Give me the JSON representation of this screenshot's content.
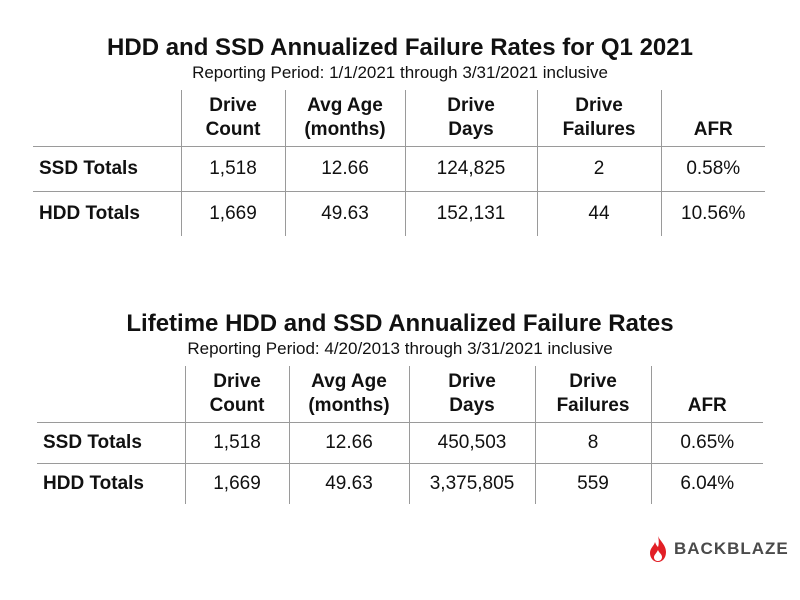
{
  "chart_data": [
    {
      "type": "table",
      "title": "HDD and SSD Annualized Failure Rates for Q1 2021",
      "subtitle": "Reporting Period: 1/1/2021 through 3/31/2021 inclusive",
      "columns": [
        [
          "Drive",
          "Count"
        ],
        [
          "Avg Age",
          "(months)"
        ],
        [
          "Drive",
          "Days"
        ],
        [
          "Drive",
          "Failures"
        ],
        [
          "",
          "AFR"
        ]
      ],
      "rows": [
        {
          "label": "SSD Totals",
          "values": [
            "1,518",
            "12.66",
            "124,825",
            "2",
            "0.58%"
          ]
        },
        {
          "label": "HDD Totals",
          "values": [
            "1,669",
            "49.63",
            "152,131",
            "44",
            "10.56%"
          ]
        }
      ]
    },
    {
      "type": "table",
      "title": "Lifetime HDD and SSD Annualized Failure Rates",
      "subtitle": "Reporting Period: 4/20/2013 through 3/31/2021 inclusive",
      "columns": [
        [
          "Drive",
          "Count"
        ],
        [
          "Avg Age",
          "(months)"
        ],
        [
          "Drive",
          "Days"
        ],
        [
          "Drive",
          "Failures"
        ],
        [
          "",
          "AFR"
        ]
      ],
      "rows": [
        {
          "label": "SSD Totals",
          "values": [
            "1,518",
            "12.66",
            "450,503",
            "8",
            "0.65%"
          ]
        },
        {
          "label": "HDD Totals",
          "values": [
            "1,669",
            "49.63",
            "3,375,805",
            "559",
            "6.04%"
          ]
        }
      ]
    }
  ],
  "logo": {
    "text": "BACKBLAZE",
    "flame_color": "#e21f26",
    "text_color": "#4a4a4a"
  }
}
